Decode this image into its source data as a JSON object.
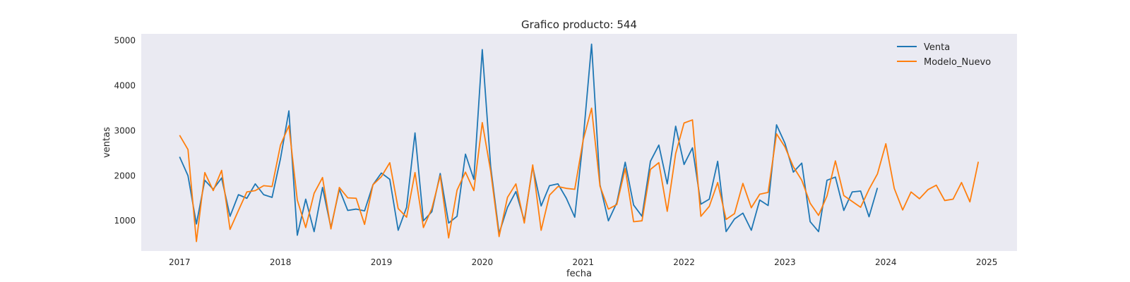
{
  "chart_data": {
    "type": "line",
    "title": "Grafico producto: 544",
    "xlabel": "fecha",
    "ylabel": "ventas",
    "x_ticks": [
      "2017",
      "2018",
      "2019",
      "2020",
      "2021",
      "2022",
      "2023",
      "2024",
      "2025"
    ],
    "y_ticks": [
      1000,
      2000,
      3000,
      4000,
      5000
    ],
    "xlim": [
      2016.62,
      2025.3
    ],
    "ylim": [
      330,
      5150
    ],
    "grid": false,
    "legend_position": "top-right",
    "x_start": "2017-01",
    "x_step": "month",
    "series": [
      {
        "name": "Venta",
        "color": "#1f77b4",
        "values": [
          2420,
          2000,
          930,
          1900,
          1700,
          1950,
          1100,
          1580,
          1500,
          1820,
          1580,
          1520,
          2380,
          3440,
          680,
          1480,
          760,
          1740,
          850,
          1700,
          1230,
          1260,
          1220,
          1800,
          2060,
          1920,
          790,
          1300,
          2950,
          1000,
          1200,
          2050,
          950,
          1100,
          2480,
          1920,
          4800,
          2200,
          720,
          1300,
          1650,
          1000,
          2200,
          1330,
          1780,
          1820,
          1500,
          1080,
          2800,
          4920,
          1800,
          1000,
          1400,
          2300,
          1350,
          1100,
          2320,
          2680,
          1820,
          3100,
          2250,
          2620,
          1370,
          1480,
          2320,
          760,
          1040,
          1170,
          790,
          1460,
          1340,
          3130,
          2720,
          2080,
          2280,
          980,
          760,
          1900,
          1970,
          1230,
          1640,
          1660,
          1090,
          1730
        ]
      },
      {
        "name": "Modelo_Nuevo",
        "color": "#ff7f0e",
        "values": [
          2900,
          2580,
          540,
          2070,
          1670,
          2120,
          810,
          1230,
          1640,
          1670,
          1780,
          1760,
          2680,
          3110,
          1460,
          850,
          1610,
          1960,
          820,
          1740,
          1510,
          1500,
          920,
          1800,
          1980,
          2290,
          1270,
          1080,
          2070,
          850,
          1270,
          2000,
          620,
          1680,
          2080,
          1670,
          3180,
          2100,
          650,
          1520,
          1820,
          950,
          2240,
          790,
          1570,
          1760,
          1720,
          1700,
          2790,
          3500,
          1770,
          1260,
          1360,
          2160,
          980,
          1000,
          2140,
          2290,
          1210,
          2490,
          3170,
          3240,
          1100,
          1320,
          1850,
          1030,
          1160,
          1830,
          1290,
          1590,
          1630,
          2930,
          2640,
          2200,
          1900,
          1390,
          1120,
          1550,
          2330,
          1560,
          1430,
          1300,
          1700,
          2040,
          2710,
          1720,
          1240,
          1640,
          1490,
          1690,
          1790,
          1450,
          1480,
          1850,
          1420,
          2310
        ]
      }
    ]
  }
}
